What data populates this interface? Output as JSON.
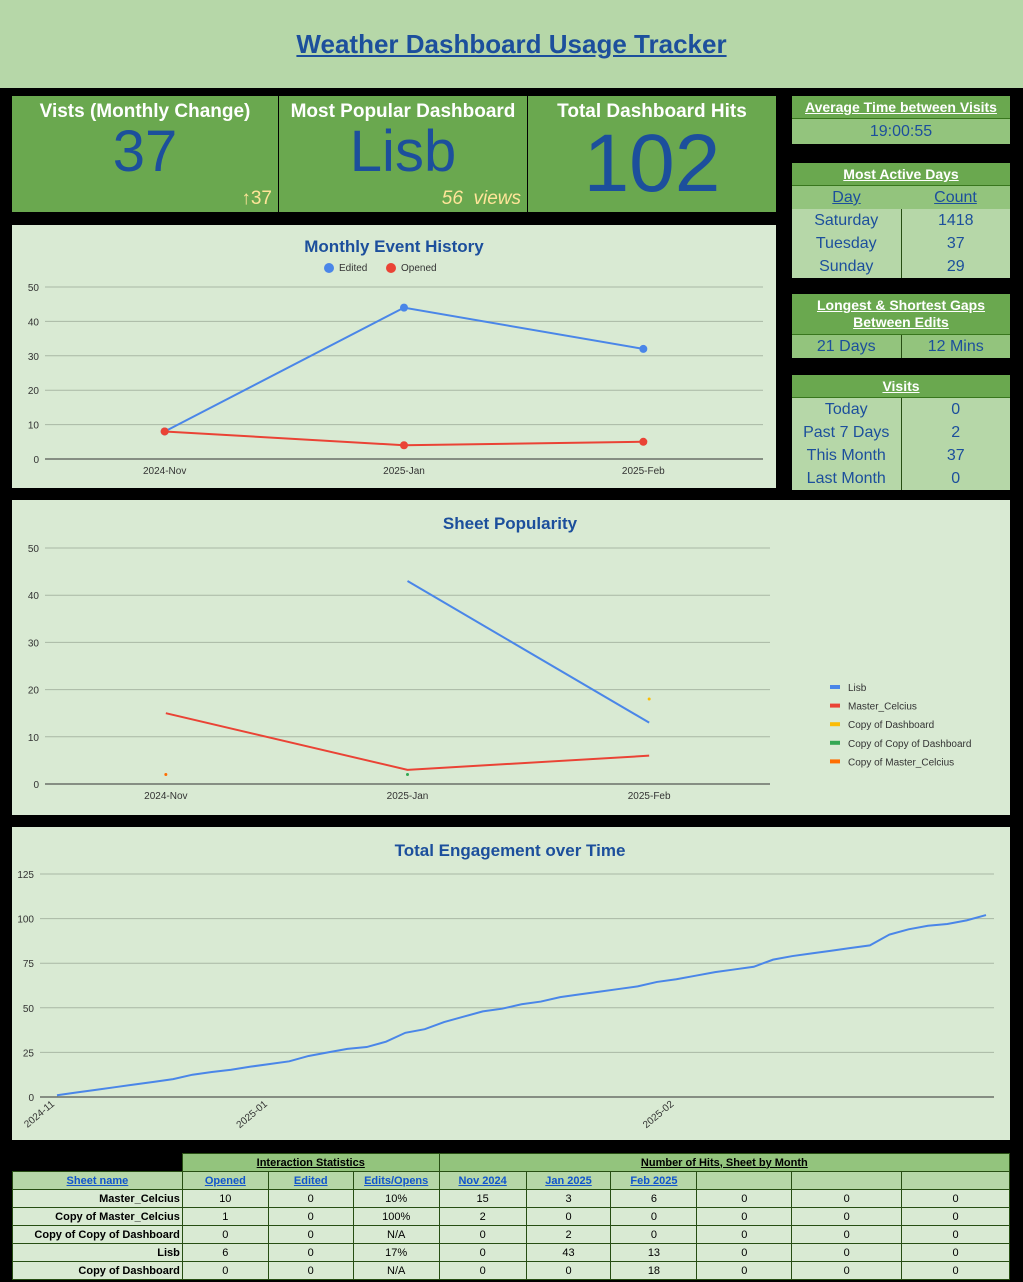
{
  "header": {
    "title": "Weather Dashboard Usage Tracker"
  },
  "kpis": {
    "visits": {
      "title": "Vists (Monthly Change)",
      "value": "37",
      "change": "↑37"
    },
    "popular": {
      "title": "Most Popular Dashboard",
      "value": "Lisb",
      "sub": "56  views"
    },
    "hits": {
      "title": "Total Dashboard Hits",
      "value": "102"
    }
  },
  "avg_time": {
    "title": "Average Time between Visits",
    "value": "19:00:55"
  },
  "active_days": {
    "title": "Most Active Days",
    "col_day": "Day",
    "col_count": "Count",
    "rows": [
      {
        "day": "Saturday",
        "count": "1418"
      },
      {
        "day": "Tuesday",
        "count": "37"
      },
      {
        "day": "Sunday",
        "count": "29"
      }
    ]
  },
  "gaps": {
    "title_1": "Longest & Shortest Gaps",
    "title_2": "Between Edits",
    "longest": "21 Days",
    "shortest": "12 Mins"
  },
  "visits": {
    "title": "Visits",
    "rows": [
      {
        "label": "Today",
        "value": "0"
      },
      {
        "label": "Past 7 Days",
        "value": "2"
      },
      {
        "label": "This Month",
        "value": "37"
      },
      {
        "label": "Last Month",
        "value": "0"
      }
    ]
  },
  "colors": {
    "blue": "#4a86e8",
    "red": "#ea4335",
    "yellow": "#fbbc04",
    "green": "#34a853",
    "orange": "#ff6d01",
    "title": "#1c4f9c"
  },
  "chart_data": [
    {
      "type": "line",
      "title": "Monthly Event History",
      "categories": [
        "2024-Nov",
        "2025-Jan",
        "2025-Feb"
      ],
      "ylim": [
        0,
        50
      ],
      "yticks": [
        "0",
        "10",
        "20",
        "30",
        "40",
        "50"
      ],
      "legend": "top",
      "grid": true,
      "series": [
        {
          "name": "Edited",
          "color": "#4a86e8",
          "values": [
            8,
            44,
            32
          ]
        },
        {
          "name": "Opened",
          "color": "#ea4335",
          "values": [
            8,
            4,
            5
          ]
        }
      ]
    },
    {
      "type": "line",
      "title": "Sheet Popularity",
      "categories": [
        "2024-Nov",
        "2025-Jan",
        "2025-Feb"
      ],
      "ylim": [
        0,
        50
      ],
      "yticks": [
        "0",
        "10",
        "20",
        "30",
        "40",
        "50"
      ],
      "legend": "right",
      "grid": true,
      "series": [
        {
          "name": "Lisb",
          "color": "#4a86e8",
          "values": [
            null,
            43,
            13
          ]
        },
        {
          "name": "Master_Celcius",
          "color": "#ea4335",
          "values": [
            15,
            3,
            6
          ]
        },
        {
          "name": "Copy of Dashboard",
          "color": "#fbbc04",
          "values": [
            null,
            null,
            18
          ]
        },
        {
          "name": "Copy of Copy of Dashboard",
          "color": "#34a853",
          "values": [
            null,
            2,
            null
          ]
        },
        {
          "name": "Copy of  Master_Celcius",
          "color": "#ff6d01",
          "values": [
            2,
            null,
            null
          ]
        }
      ]
    },
    {
      "type": "line",
      "title": "Total Engagement over Time",
      "ylim": [
        0,
        125
      ],
      "yticks": [
        "0",
        "25",
        "50",
        "75",
        "100",
        "125"
      ],
      "grid": true,
      "xticks": [
        {
          "label": "2024-11",
          "index": 0
        },
        {
          "label": "2025-01",
          "index": 11
        },
        {
          "label": "2025-02",
          "index": 32
        }
      ],
      "series": [
        {
          "color": "#4a86e8",
          "values": [
            1,
            2.5,
            4,
            5.5,
            7,
            8.5,
            10,
            12.5,
            14,
            15.3,
            17,
            18.5,
            20,
            23,
            25,
            27,
            28,
            31,
            36,
            38,
            42,
            45,
            48,
            49.5,
            52,
            53.5,
            56,
            57.5,
            59,
            60.5,
            62,
            64.5,
            66,
            68,
            70,
            71.5,
            73,
            77,
            79,
            80.5,
            82,
            83.5,
            85,
            91,
            94,
            96,
            97,
            99,
            102
          ]
        }
      ]
    }
  ],
  "table": {
    "group_1": "Interaction Statistics",
    "group_2": "Number of Hits, Sheet by Month",
    "headers": [
      "Sheet name",
      "Opened",
      "Edited",
      "Edits/Opens",
      "Nov 2024",
      "Jan 2025",
      "Feb 2025",
      "",
      "",
      ""
    ],
    "rows": [
      [
        "Master_Celcius",
        "10",
        "0",
        "10%",
        "15",
        "3",
        "6",
        "0",
        "0",
        "0"
      ],
      [
        "Copy of  Master_Celcius",
        "1",
        "0",
        "100%",
        "2",
        "0",
        "0",
        "0",
        "0",
        "0"
      ],
      [
        "Copy of Copy of Dashboard",
        "0",
        "0",
        "N/A",
        "0",
        "2",
        "0",
        "0",
        "0",
        "0"
      ],
      [
        "Lisb",
        "6",
        "0",
        "17%",
        "0",
        "43",
        "13",
        "0",
        "0",
        "0"
      ],
      [
        "Copy of Dashboard",
        "0",
        "0",
        "N/A",
        "0",
        "0",
        "18",
        "0",
        "0",
        "0"
      ]
    ]
  }
}
